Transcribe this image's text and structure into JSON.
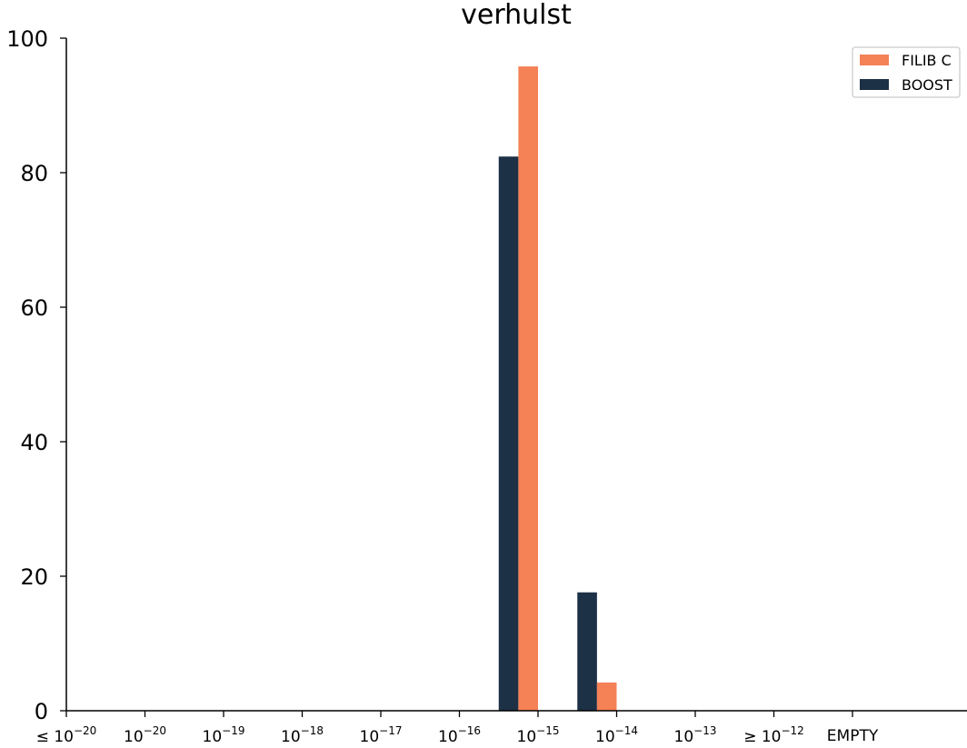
{
  "chart_data": {
    "type": "bar",
    "title": "verhulst",
    "xlabel": "",
    "ylabel": "",
    "ylim": [
      0,
      100
    ],
    "yticks": [
      0,
      20,
      40,
      60,
      80,
      100
    ],
    "categories": [
      {
        "prefix": "≤",
        "base": "10",
        "exp": "−20"
      },
      {
        "prefix": "",
        "base": "10",
        "exp": "−20"
      },
      {
        "prefix": "",
        "base": "10",
        "exp": "−19"
      },
      {
        "prefix": "",
        "base": "10",
        "exp": "−18"
      },
      {
        "prefix": "",
        "base": "10",
        "exp": "−17"
      },
      {
        "prefix": "",
        "base": "10",
        "exp": "−16"
      },
      {
        "prefix": "",
        "base": "10",
        "exp": "−15"
      },
      {
        "prefix": "",
        "base": "10",
        "exp": "−14"
      },
      {
        "prefix": "",
        "base": "10",
        "exp": "−13"
      },
      {
        "prefix": "≥",
        "base": "10",
        "exp": "−12"
      },
      {
        "prefix": "",
        "base": "EMPTY",
        "exp": ""
      }
    ],
    "series": [
      {
        "name": "BOOST",
        "color": "#1d3146",
        "values": [
          0,
          0,
          0,
          0,
          0,
          82.4,
          17.6,
          0,
          0,
          0,
          0
        ]
      },
      {
        "name": "FILIB C",
        "color": "#f58156",
        "values": [
          0,
          0,
          0,
          0,
          0,
          95.8,
          4.2,
          0,
          0,
          0,
          0
        ]
      }
    ],
    "legend": {
      "placement": "top-right",
      "order": [
        "FILIB C",
        "BOOST"
      ]
    },
    "grid": false
  }
}
